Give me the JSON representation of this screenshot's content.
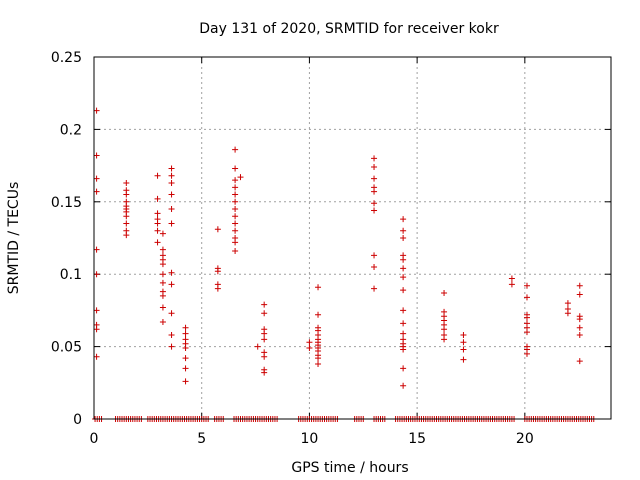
{
  "chart_data": {
    "type": "scatter",
    "title": "Day 131 of 2020, SRMTID for receiver kokr",
    "xlabel": "GPS time / hours",
    "ylabel": "SRMTID / TECUs",
    "xlim": [
      0,
      24
    ],
    "ylim": [
      0,
      0.25
    ],
    "xticks": [
      0,
      5,
      10,
      15,
      20
    ],
    "xtick_labels": [
      "0",
      "5",
      "10",
      "15",
      "20"
    ],
    "yticks": [
      0,
      0.05,
      0.1,
      0.15,
      0.2,
      0.25
    ],
    "ytick_labels": [
      "0",
      "0.05",
      "0.1",
      "0.15",
      "0.2",
      "0.25"
    ],
    "grid": true,
    "marker": "+",
    "color": "#cc0000",
    "series": [
      {
        "name": "SRMTID",
        "clusters": [
          {
            "x": 0.12,
            "y": [
              0.213,
              0.182,
              0.166,
              0.157,
              0.117,
              0.1,
              0.075,
              0.065,
              0.062,
              0.043
            ]
          },
          {
            "x": 1.5,
            "y": [
              0.163,
              0.158,
              0.155,
              0.15,
              0.147,
              0.145,
              0.143,
              0.14,
              0.135,
              0.13,
              0.127
            ]
          },
          {
            "x": 2.95,
            "y": [
              0.168,
              0.152,
              0.142,
              0.138,
              0.135,
              0.13,
              0.122
            ]
          },
          {
            "x": 3.2,
            "y": [
              0.128,
              0.117,
              0.113,
              0.11,
              0.107,
              0.1,
              0.094,
              0.088,
              0.085,
              0.077,
              0.067
            ]
          },
          {
            "x": 3.6,
            "y": [
              0.173,
              0.168,
              0.163,
              0.155,
              0.145,
              0.135,
              0.101,
              0.093,
              0.073,
              0.058,
              0.05
            ]
          },
          {
            "x": 4.25,
            "y": [
              0.063,
              0.059,
              0.055,
              0.052,
              0.049,
              0.042,
              0.035,
              0.026
            ]
          },
          {
            "x": 5.75,
            "y": [
              0.131,
              0.104,
              0.102,
              0.093,
              0.09
            ]
          },
          {
            "x": 6.55,
            "y": [
              0.186,
              0.173,
              0.165,
              0.16,
              0.155,
              0.15,
              0.145,
              0.14,
              0.135,
              0.13,
              0.125,
              0.122,
              0.116
            ]
          },
          {
            "x": 6.8,
            "y": [
              0.167
            ]
          },
          {
            "x": 7.6,
            "y": [
              0.05
            ]
          },
          {
            "x": 7.9,
            "y": [
              0.079,
              0.073,
              0.062,
              0.059,
              0.055,
              0.046,
              0.043,
              0.034,
              0.032
            ]
          },
          {
            "x": 10.0,
            "y": [
              0.053,
              0.049
            ]
          },
          {
            "x": 10.4,
            "y": [
              0.091,
              0.072,
              0.063,
              0.061,
              0.058,
              0.055,
              0.053,
              0.051,
              0.049,
              0.047,
              0.044,
              0.042,
              0.038
            ]
          },
          {
            "x": 13.0,
            "y": [
              0.18,
              0.174,
              0.166,
              0.16,
              0.157,
              0.149,
              0.144,
              0.113,
              0.105,
              0.09
            ]
          },
          {
            "x": 14.35,
            "y": [
              0.138,
              0.13,
              0.125,
              0.113,
              0.11,
              0.104,
              0.098,
              0.089,
              0.075,
              0.066,
              0.059,
              0.055,
              0.052,
              0.05,
              0.048,
              0.035,
              0.023
            ]
          },
          {
            "x": 16.25,
            "y": [
              0.087,
              0.074,
              0.071,
              0.068,
              0.065,
              0.062,
              0.058,
              0.055
            ]
          },
          {
            "x": 17.15,
            "y": [
              0.058,
              0.053,
              0.048,
              0.041
            ]
          },
          {
            "x": 19.4,
            "y": [
              0.097,
              0.093
            ]
          },
          {
            "x": 20.1,
            "y": [
              0.092,
              0.084,
              0.072,
              0.07,
              0.066,
              0.063,
              0.06,
              0.05,
              0.048,
              0.045
            ]
          },
          {
            "x": 22.0,
            "y": [
              0.08,
              0.076,
              0.073
            ]
          },
          {
            "x": 22.55,
            "y": [
              0.092,
              0.086,
              0.071,
              0.069,
              0.063,
              0.058,
              0.04
            ]
          }
        ],
        "zero_segments": [
          [
            0.05,
            0.35
          ],
          [
            1.0,
            2.2
          ],
          [
            2.5,
            5.3
          ],
          [
            5.6,
            6.0
          ],
          [
            6.5,
            8.5
          ],
          [
            9.5,
            11.3
          ],
          [
            12.1,
            12.5
          ],
          [
            13.0,
            13.5
          ],
          [
            14.0,
            19.5
          ],
          [
            20.0,
            23.2
          ]
        ]
      }
    ]
  }
}
